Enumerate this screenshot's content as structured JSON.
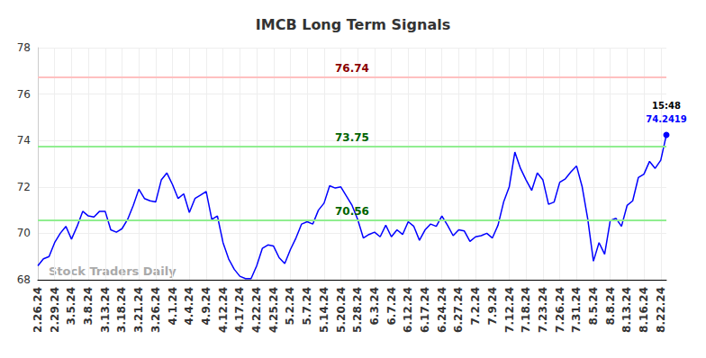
{
  "chart_data": {
    "type": "line",
    "title": "IMCB Long Term Signals",
    "watermark": "Stock Traders Daily",
    "color": "#0000ff",
    "grid": true,
    "categories": [
      "2.26.24",
      null,
      null,
      "2.29.24",
      null,
      null,
      "3.5.24",
      null,
      null,
      "3.8.24",
      null,
      null,
      "3.13.24",
      null,
      null,
      "3.18.24",
      null,
      null,
      "3.21.24",
      null,
      null,
      "3.26.24",
      null,
      null,
      "4.1.24",
      null,
      null,
      "4.4.24",
      null,
      null,
      "4.9.24",
      null,
      null,
      "4.12.24",
      null,
      null,
      "4.17.24",
      null,
      null,
      "4.22.24",
      null,
      null,
      "4.25.24",
      null,
      null,
      "5.2.24",
      null,
      null,
      "5.7.24",
      null,
      null,
      "5.14.24",
      null,
      null,
      "5.20.24",
      null,
      null,
      "5.28.24",
      null,
      null,
      "6.3.24",
      null,
      null,
      "6.7.24",
      null,
      null,
      "6.12.24",
      null,
      null,
      "6.17.24",
      null,
      null,
      "6.24.24",
      null,
      null,
      "6.27.24",
      null,
      null,
      "7.2.24",
      null,
      null,
      "7.9.24",
      null,
      null,
      "7.12.24",
      null,
      null,
      "7.18.24",
      null,
      null,
      "7.23.24",
      null,
      null,
      "7.26.24",
      null,
      null,
      "7.31.24",
      null,
      null,
      "8.5.24",
      null,
      null,
      "8.8.24",
      null,
      null,
      "8.13.24",
      null,
      null,
      "8.16.24",
      null,
      null,
      "8.22.24",
      null
    ],
    "values": [
      68.6,
      68.9,
      69.0,
      69.6,
      70.0,
      70.3,
      69.75,
      70.3,
      70.95,
      70.75,
      70.7,
      70.95,
      70.95,
      70.15,
      70.05,
      70.2,
      70.6,
      71.2,
      71.9,
      71.5,
      71.4,
      71.35,
      72.3,
      72.6,
      72.1,
      71.5,
      71.7,
      70.9,
      71.5,
      71.65,
      71.8,
      70.6,
      70.75,
      69.6,
      68.9,
      68.45,
      68.15,
      68.05,
      68.05,
      68.6,
      69.35,
      69.5,
      69.45,
      68.95,
      68.7,
      69.3,
      69.8,
      70.4,
      70.5,
      70.4,
      71.0,
      71.3,
      72.05,
      71.95,
      72.0,
      71.6,
      71.2,
      70.6,
      69.8,
      69.95,
      70.05,
      69.85,
      70.35,
      69.85,
      70.15,
      69.95,
      70.5,
      70.3,
      69.7,
      70.15,
      70.4,
      70.3,
      70.75,
      70.35,
      69.9,
      70.15,
      70.1,
      69.65,
      69.85,
      69.9,
      70.0,
      69.8,
      70.35,
      71.35,
      72.0,
      73.5,
      72.8,
      72.3,
      71.85,
      72.6,
      72.3,
      71.25,
      71.35,
      72.2,
      72.35,
      72.65,
      72.9,
      72.0,
      70.6,
      68.8,
      69.6,
      69.1,
      70.55,
      70.65,
      70.3,
      71.2,
      71.4,
      72.4,
      72.55,
      73.1,
      72.8,
      73.15,
      74.2419
    ],
    "last_point_time": "15:48",
    "lines": [
      {
        "value": 76.74,
        "color": "#8b0000"
      },
      {
        "value": 73.75,
        "color": "#006400"
      },
      {
        "value": 70.56,
        "color": "#006400"
      }
    ],
    "ylim": [
      68,
      78
    ],
    "yticks": [
      68,
      70,
      72,
      74,
      76,
      78
    ]
  }
}
